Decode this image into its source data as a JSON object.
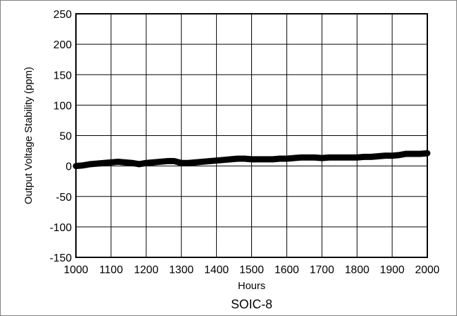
{
  "chart_data": {
    "type": "line",
    "title": "",
    "caption": "SOIC-8",
    "xlabel": "Hours",
    "ylabel": "Output Voltage Stability (ppm)",
    "xlim": [
      1000,
      2000
    ],
    "ylim": [
      -150,
      250
    ],
    "xticks": [
      1000,
      1100,
      1200,
      1300,
      1400,
      1500,
      1600,
      1700,
      1800,
      1900,
      2000
    ],
    "yticks": [
      -150,
      -100,
      -50,
      0,
      50,
      100,
      150,
      200,
      250
    ],
    "grid": true,
    "legend": "none",
    "line_color": "#000000",
    "series": [
      {
        "x": [
          1000,
          1020,
          1040,
          1060,
          1080,
          1100,
          1120,
          1140,
          1160,
          1180,
          1200,
          1220,
          1240,
          1260,
          1280,
          1300,
          1320,
          1340,
          1360,
          1380,
          1400,
          1420,
          1440,
          1460,
          1480,
          1500,
          1520,
          1540,
          1560,
          1580,
          1600,
          1620,
          1640,
          1660,
          1680,
          1700,
          1720,
          1740,
          1760,
          1780,
          1800,
          1820,
          1840,
          1860,
          1880,
          1900,
          1920,
          1940,
          1960,
          1980,
          2000
        ],
        "y": [
          0,
          1,
          3,
          4,
          5,
          6,
          7,
          6,
          5,
          3,
          5,
          6,
          7,
          8,
          8,
          5,
          5,
          6,
          7,
          8,
          9,
          10,
          11,
          12,
          12,
          11,
          11,
          11,
          11,
          12,
          12,
          13,
          14,
          14,
          14,
          13,
          14,
          14,
          14,
          14,
          14,
          15,
          15,
          16,
          17,
          17,
          18,
          20,
          20,
          20,
          21
        ]
      }
    ]
  }
}
